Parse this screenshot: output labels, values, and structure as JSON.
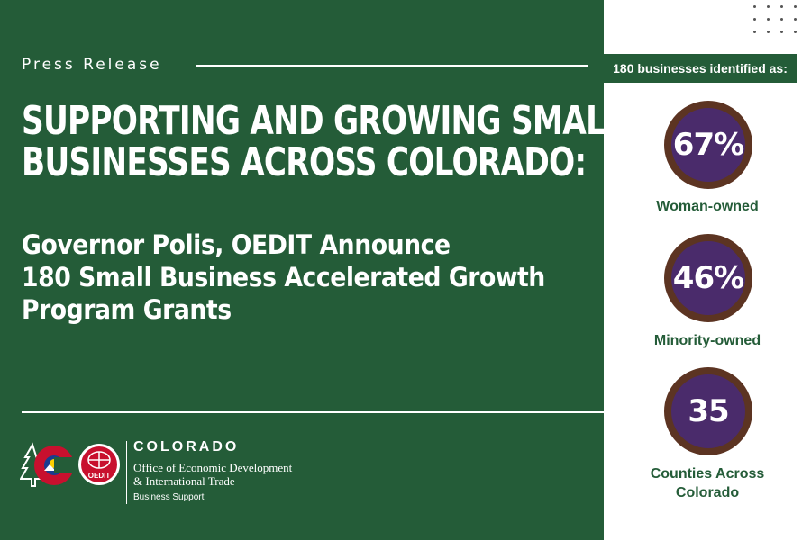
{
  "release": {
    "label": "Press Release",
    "headline_line1": "SUPPORTING AND GROWING SMALL",
    "headline_line2": "BUSINESSES ACROSS COLORADO:",
    "subhead_line1": "Governor Polis, OEDIT Announce",
    "subhead_line2": "180 Small Business Accelerated Growth",
    "subhead_line3": "Program Grants"
  },
  "branding": {
    "name": "COLORADO",
    "office_line1": "Office of Economic Development",
    "office_line2": "& International Trade",
    "division": "Business Support",
    "oedit_badge": "OEDIT",
    "logo_icon": "colorado-c-logo",
    "badge_icon": "oedit-globe-logo"
  },
  "stats": {
    "header": "180 businesses identified as:",
    "items": [
      {
        "value": "67%",
        "label": "Woman-owned"
      },
      {
        "value": "46%",
        "label": "Minority-owned"
      },
      {
        "value": "35",
        "label": "Counties Across",
        "label2": "Colorado"
      }
    ]
  },
  "colors": {
    "green": "#245c38",
    "purple": "#4a2b6b",
    "brown": "#5c3422",
    "white": "#ffffff"
  }
}
